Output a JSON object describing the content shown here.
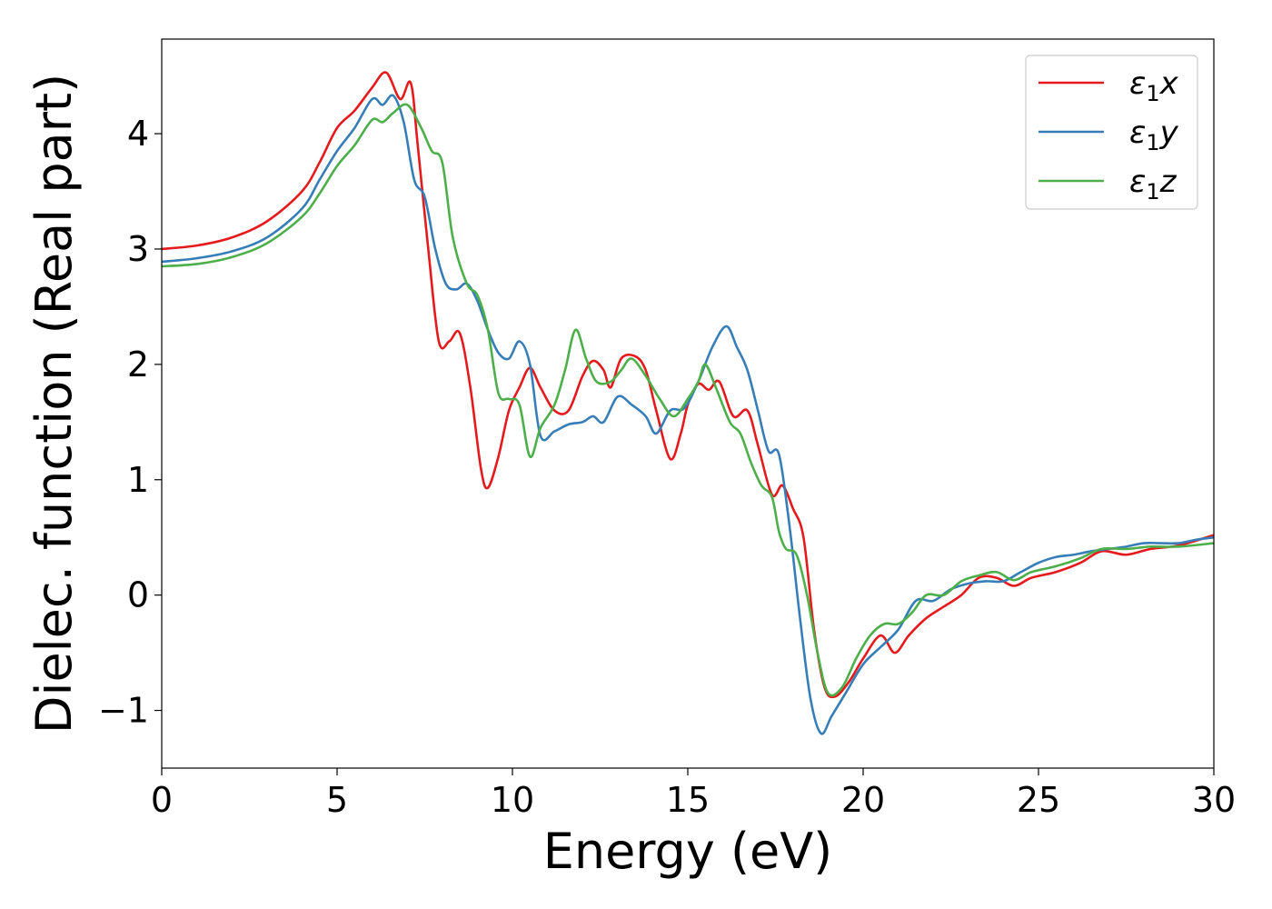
{
  "chart_data": {
    "type": "line",
    "title": "",
    "xlabel": "Energy (eV)",
    "ylabel": "Dielec. function (Real part)",
    "xlim": [
      0,
      30
    ],
    "ylim": [
      -1.5,
      4.82
    ],
    "xticks": [
      0,
      5,
      10,
      15,
      20,
      25,
      30
    ],
    "xtick_labels": [
      "0",
      "5",
      "10",
      "15",
      "20",
      "25",
      "30"
    ],
    "yticks": [
      -1,
      0,
      1,
      2,
      3,
      4
    ],
    "ytick_labels": [
      "−1",
      "0",
      "1",
      "2",
      "3",
      "4"
    ],
    "grid": false,
    "legend_position": "top-right",
    "series": [
      {
        "name": "ε₁x",
        "legend_base": "ε",
        "legend_sub": "1",
        "legend_var": "x",
        "color": "#e41a1c",
        "points": [
          [
            0,
            3.0
          ],
          [
            1,
            3.03
          ],
          [
            2,
            3.1
          ],
          [
            3,
            3.24
          ],
          [
            4,
            3.5
          ],
          [
            4.5,
            3.75
          ],
          [
            5,
            4.05
          ],
          [
            5.5,
            4.2
          ],
          [
            6,
            4.4
          ],
          [
            6.4,
            4.53
          ],
          [
            6.8,
            4.3
          ],
          [
            7.1,
            4.44
          ],
          [
            7.3,
            3.9
          ],
          [
            7.6,
            3.0
          ],
          [
            7.9,
            2.2
          ],
          [
            8.2,
            2.2
          ],
          [
            8.5,
            2.27
          ],
          [
            8.8,
            1.8
          ],
          [
            9.1,
            1.1
          ],
          [
            9.3,
            0.93
          ],
          [
            9.6,
            1.2
          ],
          [
            9.9,
            1.6
          ],
          [
            10.2,
            1.8
          ],
          [
            10.5,
            1.97
          ],
          [
            10.8,
            1.8
          ],
          [
            11.2,
            1.6
          ],
          [
            11.6,
            1.6
          ],
          [
            12.0,
            1.9
          ],
          [
            12.3,
            2.03
          ],
          [
            12.6,
            1.95
          ],
          [
            12.8,
            1.8
          ],
          [
            13.1,
            2.05
          ],
          [
            13.5,
            2.07
          ],
          [
            13.8,
            1.95
          ],
          [
            14.1,
            1.6
          ],
          [
            14.5,
            1.18
          ],
          [
            14.8,
            1.4
          ],
          [
            15.0,
            1.65
          ],
          [
            15.3,
            1.83
          ],
          [
            15.6,
            1.78
          ],
          [
            15.9,
            1.85
          ],
          [
            16.3,
            1.55
          ],
          [
            16.7,
            1.6
          ],
          [
            17.0,
            1.3
          ],
          [
            17.4,
            0.87
          ],
          [
            17.7,
            0.95
          ],
          [
            18.0,
            0.75
          ],
          [
            18.3,
            0.5
          ],
          [
            18.6,
            -0.3
          ],
          [
            18.9,
            -0.8
          ],
          [
            19.2,
            -0.88
          ],
          [
            19.6,
            -0.75
          ],
          [
            20.0,
            -0.55
          ],
          [
            20.5,
            -0.35
          ],
          [
            20.9,
            -0.5
          ],
          [
            21.3,
            -0.35
          ],
          [
            21.8,
            -0.2
          ],
          [
            22.3,
            -0.1
          ],
          [
            22.8,
            0.0
          ],
          [
            23.3,
            0.15
          ],
          [
            23.8,
            0.15
          ],
          [
            24.3,
            0.08
          ],
          [
            24.8,
            0.15
          ],
          [
            25.5,
            0.2
          ],
          [
            26.2,
            0.28
          ],
          [
            26.8,
            0.38
          ],
          [
            27.5,
            0.35
          ],
          [
            28.2,
            0.4
          ],
          [
            29.0,
            0.43
          ],
          [
            30.0,
            0.52
          ]
        ]
      },
      {
        "name": "ε₁y",
        "legend_base": "ε",
        "legend_sub": "1",
        "legend_var": "y",
        "color": "#377eb8",
        "points": [
          [
            0,
            2.89
          ],
          [
            1,
            2.92
          ],
          [
            2,
            2.98
          ],
          [
            3,
            3.1
          ],
          [
            4,
            3.35
          ],
          [
            4.5,
            3.6
          ],
          [
            5,
            3.85
          ],
          [
            5.5,
            4.05
          ],
          [
            6,
            4.3
          ],
          [
            6.3,
            4.25
          ],
          [
            6.6,
            4.33
          ],
          [
            6.9,
            4.1
          ],
          [
            7.2,
            3.6
          ],
          [
            7.5,
            3.45
          ],
          [
            7.8,
            3.0
          ],
          [
            8.1,
            2.7
          ],
          [
            8.4,
            2.65
          ],
          [
            8.7,
            2.7
          ],
          [
            9.0,
            2.55
          ],
          [
            9.3,
            2.3
          ],
          [
            9.6,
            2.1
          ],
          [
            9.9,
            2.05
          ],
          [
            10.2,
            2.2
          ],
          [
            10.5,
            2.0
          ],
          [
            10.8,
            1.38
          ],
          [
            11.2,
            1.42
          ],
          [
            11.6,
            1.48
          ],
          [
            12.0,
            1.5
          ],
          [
            12.3,
            1.55
          ],
          [
            12.6,
            1.5
          ],
          [
            13.0,
            1.72
          ],
          [
            13.4,
            1.65
          ],
          [
            13.8,
            1.55
          ],
          [
            14.1,
            1.4
          ],
          [
            14.5,
            1.6
          ],
          [
            14.9,
            1.62
          ],
          [
            15.3,
            1.85
          ],
          [
            15.7,
            2.15
          ],
          [
            16.1,
            2.33
          ],
          [
            16.4,
            2.15
          ],
          [
            16.7,
            1.95
          ],
          [
            17.0,
            1.6
          ],
          [
            17.3,
            1.25
          ],
          [
            17.6,
            1.22
          ],
          [
            17.9,
            0.6
          ],
          [
            18.2,
            -0.2
          ],
          [
            18.5,
            -0.9
          ],
          [
            18.8,
            -1.2
          ],
          [
            19.1,
            -1.05
          ],
          [
            19.5,
            -0.85
          ],
          [
            20.0,
            -0.6
          ],
          [
            20.5,
            -0.45
          ],
          [
            21.0,
            -0.3
          ],
          [
            21.5,
            -0.05
          ],
          [
            22.0,
            -0.05
          ],
          [
            22.5,
            0.05
          ],
          [
            23.0,
            0.1
          ],
          [
            23.5,
            0.12
          ],
          [
            24.0,
            0.12
          ],
          [
            24.5,
            0.2
          ],
          [
            25.0,
            0.28
          ],
          [
            25.5,
            0.33
          ],
          [
            26.0,
            0.35
          ],
          [
            26.5,
            0.38
          ],
          [
            27.0,
            0.4
          ],
          [
            27.5,
            0.42
          ],
          [
            28.0,
            0.45
          ],
          [
            28.5,
            0.45
          ],
          [
            29.0,
            0.45
          ],
          [
            29.5,
            0.48
          ],
          [
            30.0,
            0.5
          ]
        ]
      },
      {
        "name": "ε₁z",
        "legend_base": "ε",
        "legend_sub": "1",
        "legend_var": "z",
        "color": "#4daf4a",
        "points": [
          [
            0,
            2.85
          ],
          [
            1,
            2.87
          ],
          [
            2,
            2.93
          ],
          [
            3,
            3.05
          ],
          [
            4,
            3.28
          ],
          [
            4.5,
            3.48
          ],
          [
            5,
            3.72
          ],
          [
            5.5,
            3.9
          ],
          [
            6,
            4.12
          ],
          [
            6.3,
            4.1
          ],
          [
            6.6,
            4.18
          ],
          [
            7.0,
            4.25
          ],
          [
            7.4,
            4.05
          ],
          [
            7.7,
            3.85
          ],
          [
            8.0,
            3.75
          ],
          [
            8.3,
            3.1
          ],
          [
            8.7,
            2.7
          ],
          [
            9.0,
            2.6
          ],
          [
            9.3,
            2.3
          ],
          [
            9.6,
            1.75
          ],
          [
            9.9,
            1.7
          ],
          [
            10.2,
            1.65
          ],
          [
            10.5,
            1.2
          ],
          [
            10.8,
            1.45
          ],
          [
            11.2,
            1.65
          ],
          [
            11.5,
            1.95
          ],
          [
            11.8,
            2.3
          ],
          [
            12.1,
            2.05
          ],
          [
            12.4,
            1.85
          ],
          [
            12.8,
            1.85
          ],
          [
            13.1,
            1.95
          ],
          [
            13.4,
            2.05
          ],
          [
            13.8,
            1.9
          ],
          [
            14.2,
            1.7
          ],
          [
            14.6,
            1.55
          ],
          [
            15.0,
            1.7
          ],
          [
            15.3,
            1.85
          ],
          [
            15.5,
            2.0
          ],
          [
            15.8,
            1.8
          ],
          [
            16.2,
            1.5
          ],
          [
            16.5,
            1.4
          ],
          [
            16.8,
            1.15
          ],
          [
            17.1,
            0.95
          ],
          [
            17.4,
            0.85
          ],
          [
            17.6,
            0.55
          ],
          [
            17.8,
            0.4
          ],
          [
            18.1,
            0.35
          ],
          [
            18.4,
            0.0
          ],
          [
            18.7,
            -0.5
          ],
          [
            19.0,
            -0.85
          ],
          [
            19.4,
            -0.8
          ],
          [
            19.8,
            -0.55
          ],
          [
            20.2,
            -0.35
          ],
          [
            20.6,
            -0.25
          ],
          [
            21.0,
            -0.25
          ],
          [
            21.4,
            -0.15
          ],
          [
            21.8,
            0.0
          ],
          [
            22.3,
            0.0
          ],
          [
            22.8,
            0.12
          ],
          [
            23.3,
            0.17
          ],
          [
            23.8,
            0.2
          ],
          [
            24.3,
            0.13
          ],
          [
            24.8,
            0.2
          ],
          [
            25.5,
            0.25
          ],
          [
            26.2,
            0.32
          ],
          [
            26.8,
            0.4
          ],
          [
            27.5,
            0.4
          ],
          [
            28.2,
            0.42
          ],
          [
            29.0,
            0.42
          ],
          [
            30.0,
            0.45
          ]
        ]
      }
    ]
  }
}
